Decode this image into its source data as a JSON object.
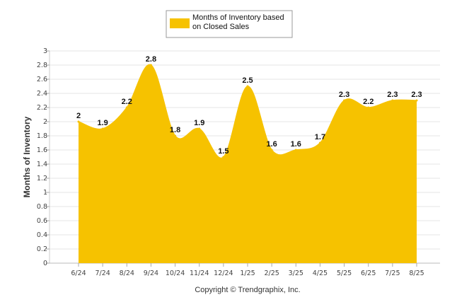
{
  "chart_data": {
    "type": "area",
    "categories": [
      "6/24",
      "7/24",
      "8/24",
      "9/24",
      "10/24",
      "11/24",
      "12/24",
      "1/25",
      "2/25",
      "3/25",
      "4/25",
      "5/25",
      "6/25",
      "7/25",
      "8/25"
    ],
    "series": [
      {
        "name": "Months of Inventory based on Closed Sales",
        "values": [
          2,
          1.9,
          2.2,
          2.8,
          1.8,
          1.9,
          1.5,
          2.5,
          1.6,
          1.6,
          1.7,
          2.3,
          2.2,
          2.3,
          2.3
        ],
        "color": "#f6c200"
      }
    ],
    "ylabel": "Months of Inventory",
    "xlabel": "",
    "ylim": [
      0,
      3
    ],
    "yticks": [
      0,
      0.2,
      0.4,
      0.6,
      0.8,
      1,
      1.2,
      1.4,
      1.6,
      1.8,
      2,
      2.2,
      2.4,
      2.6,
      2.8,
      3
    ],
    "grid": true,
    "legend_position": "top-center",
    "data_labels": true
  },
  "legend": {
    "lines": [
      "Months of Inventory based",
      "on Closed Sales"
    ]
  },
  "credit": "Copyright © Trendgraphix, Inc.",
  "colors": {
    "area": "#f6c200",
    "grid": "#e6e6e6"
  }
}
